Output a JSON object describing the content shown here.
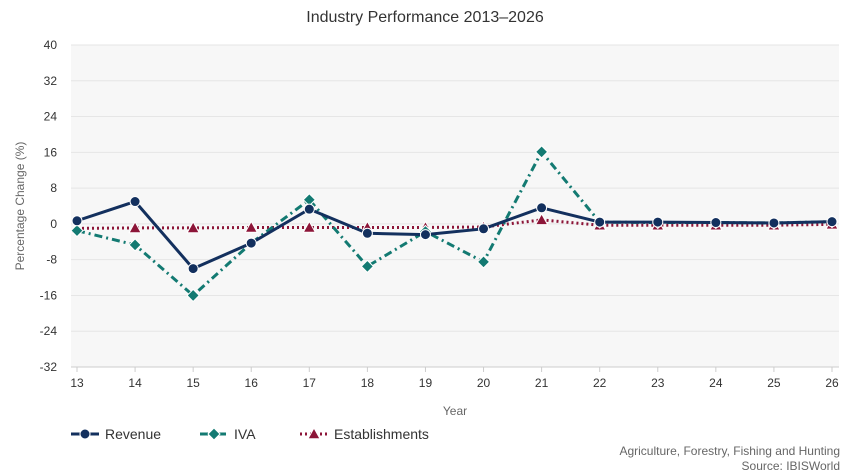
{
  "chart_data": {
    "type": "line",
    "title": "Industry Performance 2013–2026",
    "xlabel": "Year",
    "ylabel": "Percentage Change (%)",
    "categories": [
      "13",
      "14",
      "15",
      "16",
      "17",
      "18",
      "19",
      "20",
      "21",
      "22",
      "23",
      "24",
      "25",
      "26"
    ],
    "ylim": [
      -32,
      40
    ],
    "yticks": [
      -32,
      -24,
      -16,
      -8,
      0,
      8,
      16,
      24,
      32,
      40
    ],
    "grid": true,
    "legend_position": "bottom-left",
    "series": [
      {
        "name": "Revenue",
        "color": "#13305e",
        "marker": "circle",
        "dash": "solid",
        "values": [
          0.7,
          5.0,
          -10.0,
          -4.3,
          3.3,
          -2.1,
          -2.4,
          -1.1,
          3.6,
          0.4,
          0.4,
          0.3,
          0.2,
          0.5
        ]
      },
      {
        "name": "IVA",
        "color": "#137a72",
        "marker": "diamond",
        "dash": "dashdot",
        "values": [
          -1.5,
          -4.7,
          -16.0,
          -4.3,
          5.4,
          -9.5,
          -1.7,
          -8.5,
          16.1,
          0.4,
          0.3,
          0.3,
          0.2,
          0.5
        ]
      },
      {
        "name": "Establishments",
        "color": "#8c1538",
        "marker": "triangle",
        "dash": "dotted",
        "values": [
          -1.0,
          -0.9,
          -0.9,
          -0.8,
          -0.8,
          -0.8,
          -0.8,
          -0.7,
          0.9,
          -0.3,
          -0.3,
          -0.3,
          -0.3,
          -0.1
        ]
      }
    ]
  },
  "footer": {
    "industry": "Agriculture, Forestry, Fishing and Hunting",
    "source": "Source: IBISWorld"
  }
}
